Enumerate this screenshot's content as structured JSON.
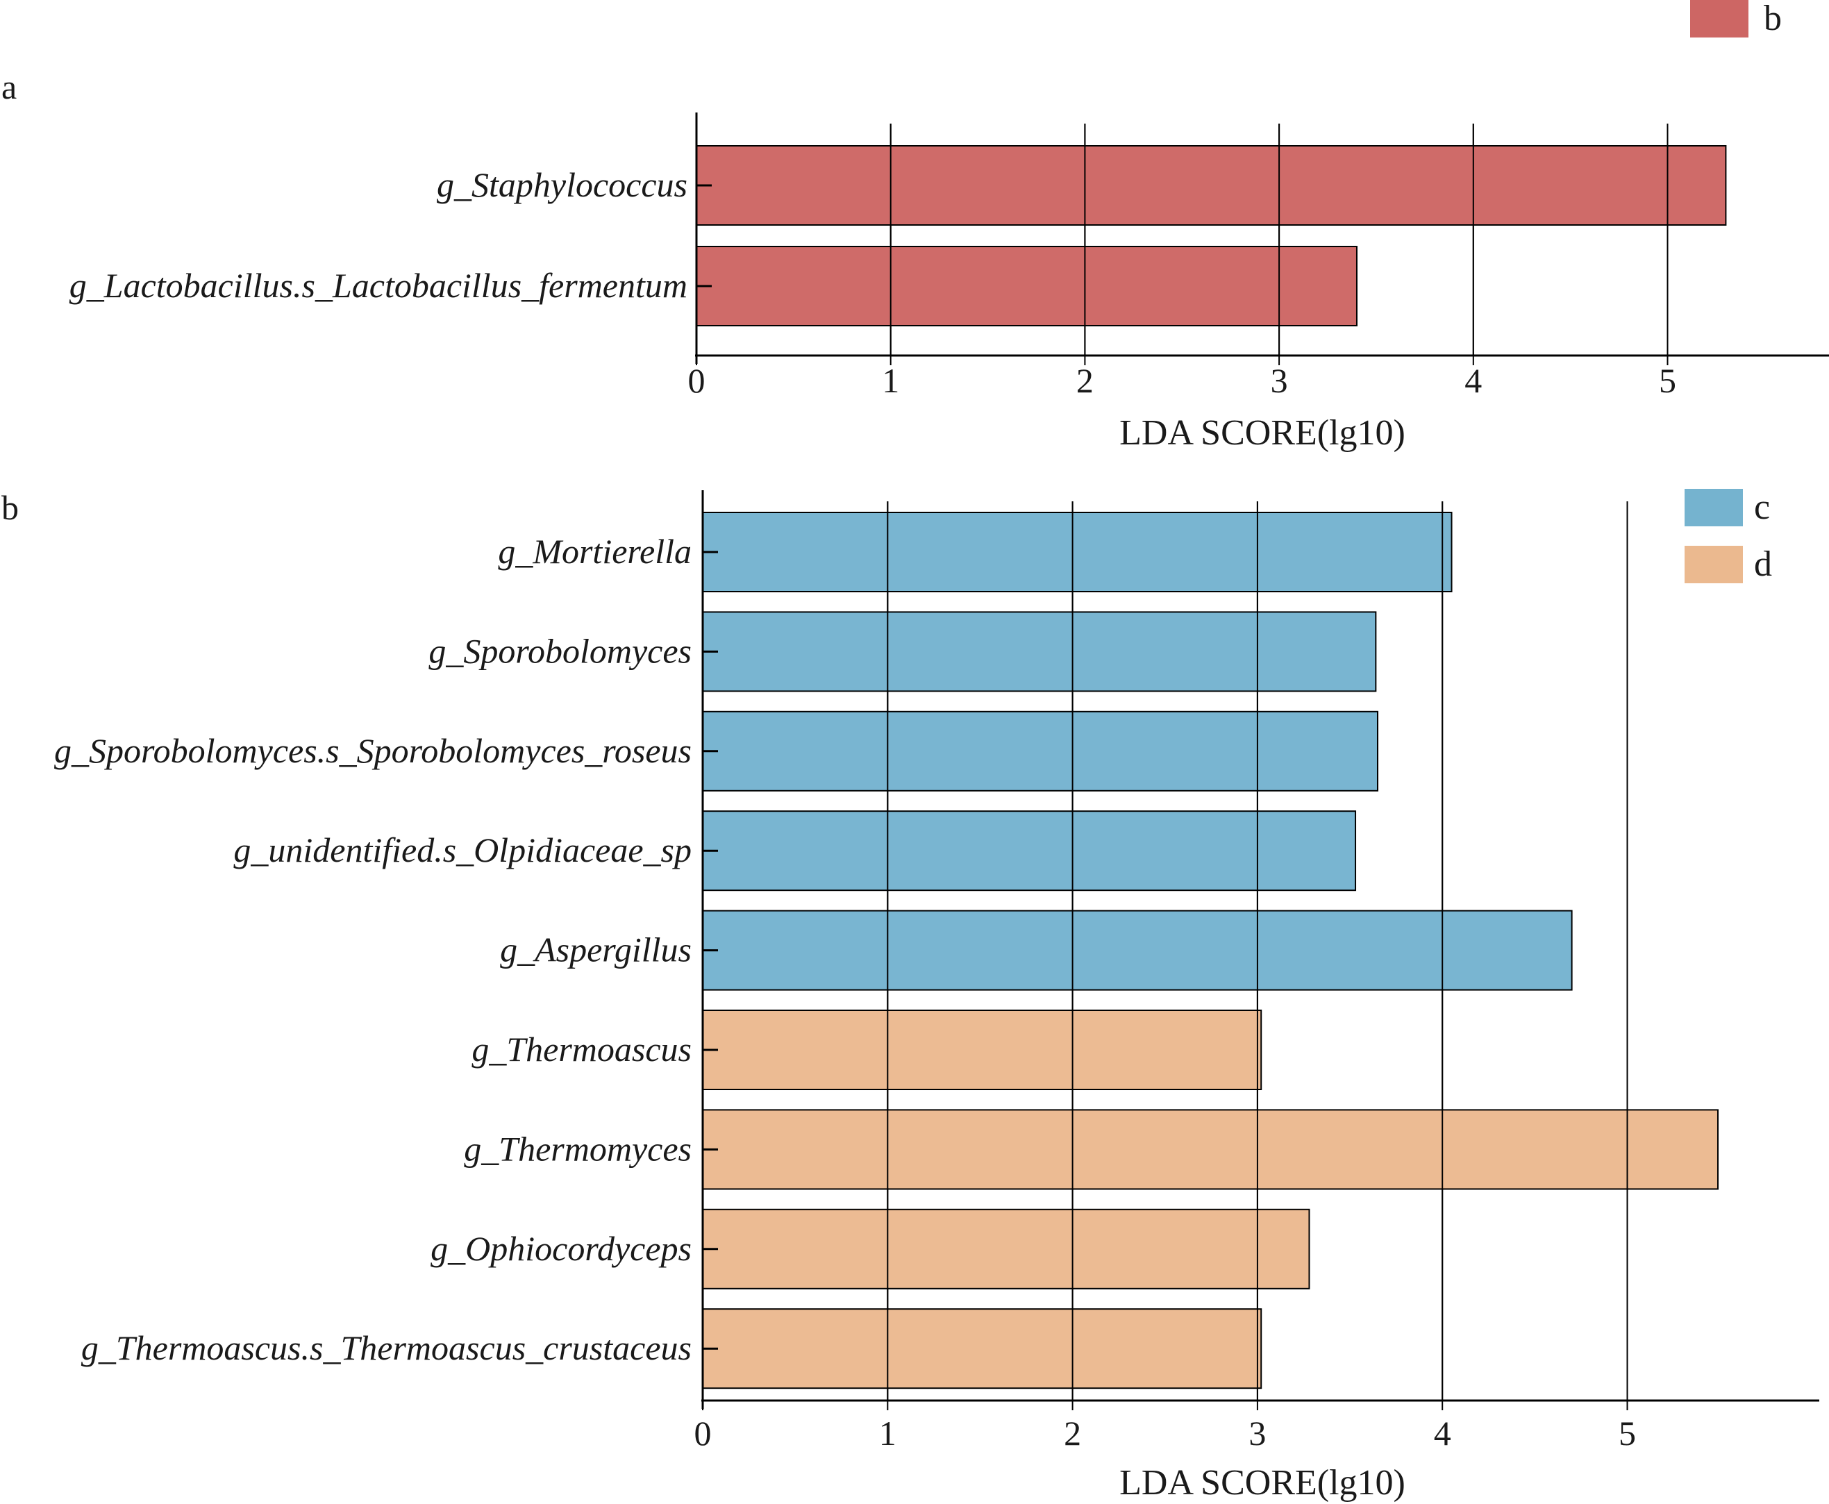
{
  "colors": {
    "b": "#cd6664",
    "c": "#75b3cf",
    "d": "#ebb98f"
  },
  "chart_data": [
    {
      "panel": "a",
      "type": "bar",
      "orientation": "horizontal",
      "categories": [
        "g_Staphylococcus",
        "g_Lactobacillus.s_Lactobacillus_fermentum"
      ],
      "values": [
        5.3,
        3.4
      ],
      "groups": [
        "b",
        "b"
      ],
      "xlabel": "LDA SCORE(lg10)",
      "xlim": [
        0,
        5.8
      ],
      "xticks": [
        0,
        1,
        2,
        3,
        4,
        5
      ],
      "grid": "vertical",
      "legend": [
        {
          "label": "b",
          "color": "#cd6664"
        }
      ],
      "legend_position": "top-right"
    },
    {
      "panel": "b",
      "type": "bar",
      "orientation": "horizontal",
      "categories": [
        "g_Mortierella",
        "g_Sporobolomyces",
        "g_Sporobolomyces.s_Sporobolomyces_roseus",
        "g_unidentified.s_Olpidiaceae_sp",
        "g_Aspergillus",
        "g_Thermoascus",
        "g_Thermomyces",
        "g_Ophiocordyceps",
        "g_Thermoascus.s_Thermoascus_crustaceus"
      ],
      "values": [
        4.05,
        3.64,
        3.65,
        3.53,
        4.7,
        3.02,
        5.49,
        3.28,
        3.02
      ],
      "groups": [
        "c",
        "c",
        "c",
        "c",
        "c",
        "d",
        "d",
        "d",
        "d"
      ],
      "xlabel": "LDA SCORE(lg10)",
      "xlim": [
        0,
        6.0
      ],
      "xticks": [
        0,
        1,
        2,
        3,
        4,
        5
      ],
      "grid": "vertical",
      "legend": [
        {
          "label": "c",
          "color": "#75b3cf"
        },
        {
          "label": "d",
          "color": "#ebb98f"
        }
      ],
      "legend_position": "top-right"
    }
  ]
}
